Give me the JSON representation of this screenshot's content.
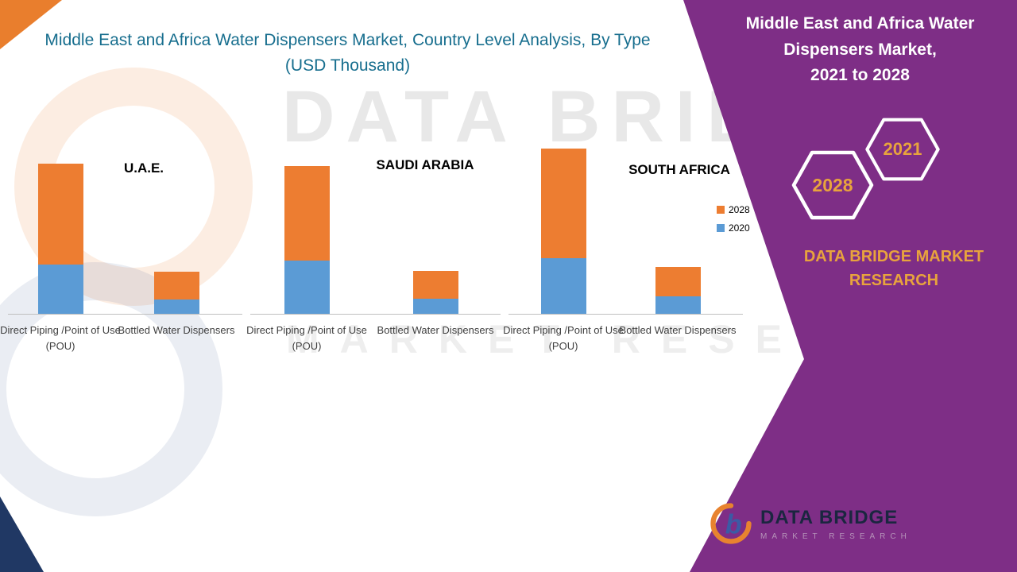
{
  "header": {
    "chart_title": "Middle East and Africa Water Dispensers Market, Country Level Analysis, By Type (USD Thousand)"
  },
  "side_panel": {
    "title": "Middle East and Africa Water Dispensers Market,",
    "period": "2021 to 2028",
    "hexagons": [
      {
        "label": "2028"
      },
      {
        "label": "2021"
      }
    ],
    "brand_text": "DATA BRIDGE MARKET RESEARCH",
    "panel_color": "#7E2E86",
    "accent_color": "#E8A33D"
  },
  "legend": [
    {
      "label": "2028",
      "color": "#ED7D31"
    },
    {
      "label": "2020",
      "color": "#5B9BD5"
    }
  ],
  "watermark": {
    "line1": "DATA BRIDGE",
    "line2": "MARKET RESEARCH"
  },
  "footer_logo": {
    "name": "DATA BRIDGE",
    "subtitle": "MARKET RESEARCH"
  },
  "chart_data": {
    "type": "bar",
    "stacked": true,
    "title": "Middle East and Africa Water Dispensers Market, Country Level Analysis, By Type (USD Thousand)",
    "value_unit": "USD Thousand (axis unlabeled; values estimated in relative units)",
    "ylim": [
      0,
      220
    ],
    "grid": false,
    "legend_position": "right",
    "categories": [
      "Direct Piping /Point of Use (POU)",
      "Bottled Water Dispensers"
    ],
    "groups": [
      {
        "country": "U.A.E.",
        "series": [
          {
            "name": "2020",
            "color": "#5B9BD5",
            "values": [
              62,
              18
            ]
          },
          {
            "name": "2028",
            "color": "#ED7D31",
            "values": [
              127,
              35
            ]
          }
        ]
      },
      {
        "country": "SAUDI ARABIA",
        "series": [
          {
            "name": "2020",
            "color": "#5B9BD5",
            "values": [
              67,
              19
            ]
          },
          {
            "name": "2028",
            "color": "#ED7D31",
            "values": [
              119,
              35
            ]
          }
        ]
      },
      {
        "country": "SOUTH AFRICA",
        "series": [
          {
            "name": "2020",
            "color": "#5B9BD5",
            "values": [
              70,
              22
            ]
          },
          {
            "name": "2028",
            "color": "#ED7D31",
            "values": [
              138,
              37
            ]
          }
        ]
      }
    ]
  }
}
